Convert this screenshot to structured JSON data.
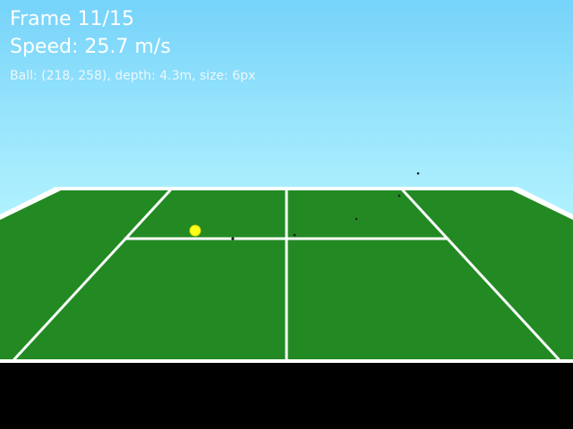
{
  "hud": {
    "frame_text": "Frame 11/15",
    "speed_text": "Speed: 25.7 m/s",
    "ball_info_text": "Ball: (218, 258), depth: 4.3m, size: 6px"
  },
  "colors": {
    "court": "#238a23",
    "lines": "#ffffff",
    "ball": "#ffff1a",
    "ball_outline": "#d6d600",
    "debris": "#1a1a1a"
  }
}
